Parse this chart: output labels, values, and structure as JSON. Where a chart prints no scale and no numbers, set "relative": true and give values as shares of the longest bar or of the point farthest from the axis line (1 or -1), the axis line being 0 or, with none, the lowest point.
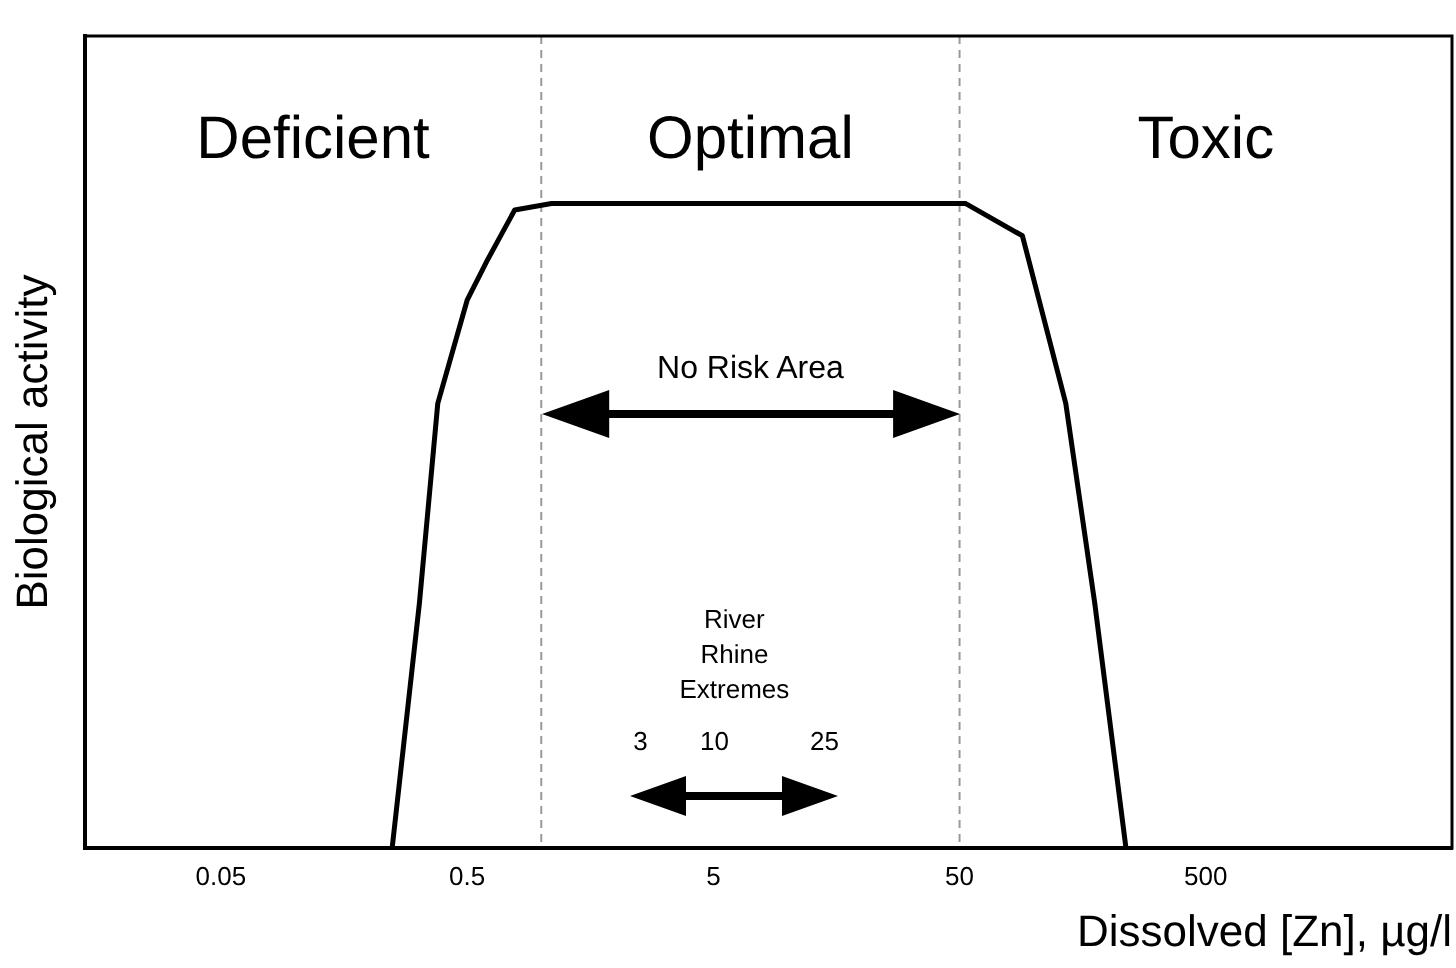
{
  "chart_data": {
    "type": "line",
    "relative": true,
    "xlabel": "Dissolved [Zn], µg/l",
    "ylabel": "Biological activity",
    "x": [
      0.248,
      0.32,
      0.38,
      0.5,
      0.6,
      0.78,
      1.1,
      53,
      90,
      135,
      177,
      237
    ],
    "series": [
      {
        "color": "#000000",
        "values": [
          0,
          0.38,
          0.69,
          0.85,
          0.91,
          0.99,
          1,
          1,
          0.95,
          0.69,
          0.38,
          0
        ]
      }
    ],
    "log": "x",
    "xlim": [
      0.014,
      5000
    ],
    "xticks": [
      0.05,
      0.5,
      5,
      50,
      500
    ],
    "tick_labels": "x",
    "grid": false,
    "legend": false,
    "marker": "none",
    "line_style": "solid",
    "ref_lines": [
      {
        "axis": "x",
        "value": 1,
        "color": "#999999",
        "line_style": "dashed"
      },
      {
        "axis": "x",
        "value": 50,
        "color": "#999999",
        "line_style": "dashed"
      }
    ],
    "annotations": [
      "Deficient",
      "Optimal",
      "Toxic",
      "No Risk Area",
      "River\nRhine\nExtremes",
      "3",
      "10",
      "25"
    ]
  }
}
